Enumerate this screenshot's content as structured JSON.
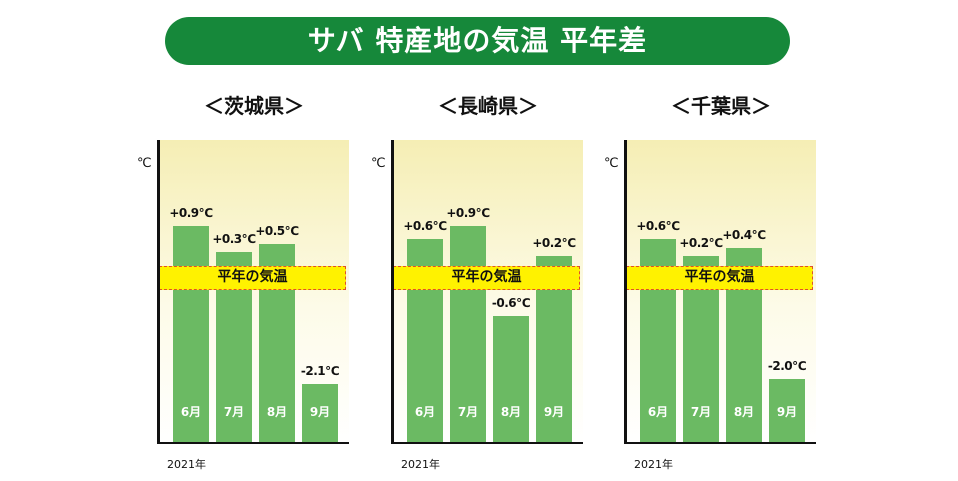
{
  "title": "サバ 特産地の気温 平年差",
  "chart_data": [
    {
      "type": "bar",
      "title": "＜茨城県＞",
      "categories": [
        "6月",
        "7月",
        "8月",
        "9月"
      ],
      "values": [
        0.9,
        0.3,
        0.5,
        -2.1
      ],
      "labels": [
        "+0.9℃",
        "+0.3℃",
        "+0.5℃",
        "-2.1℃"
      ],
      "ylabel": "℃",
      "xlabel": "2021年",
      "reference_label": "平年の気温"
    },
    {
      "type": "bar",
      "title": "＜長崎県＞",
      "categories": [
        "6月",
        "7月",
        "8月",
        "9月"
      ],
      "values": [
        0.6,
        0.9,
        -0.6,
        0.2
      ],
      "labels": [
        "+0.6℃",
        "+0.9℃",
        "-0.6℃",
        "+0.2℃"
      ],
      "ylabel": "℃",
      "xlabel": "2021年",
      "reference_label": "平年の気温"
    },
    {
      "type": "bar",
      "title": "＜千葉県＞",
      "categories": [
        "6月",
        "7月",
        "8月",
        "9月"
      ],
      "values": [
        0.6,
        0.2,
        0.4,
        -2.0
      ],
      "labels": [
        "+0.6℃",
        "+0.2℃",
        "+0.4℃",
        "-2.0℃"
      ],
      "ylabel": "℃",
      "xlabel": "2021年",
      "reference_label": "平年の気温"
    }
  ],
  "colors": {
    "title_bg": "#16883a",
    "bar": "#6bba63",
    "reference_band": "#fff200",
    "reference_border": "#e0502a"
  }
}
